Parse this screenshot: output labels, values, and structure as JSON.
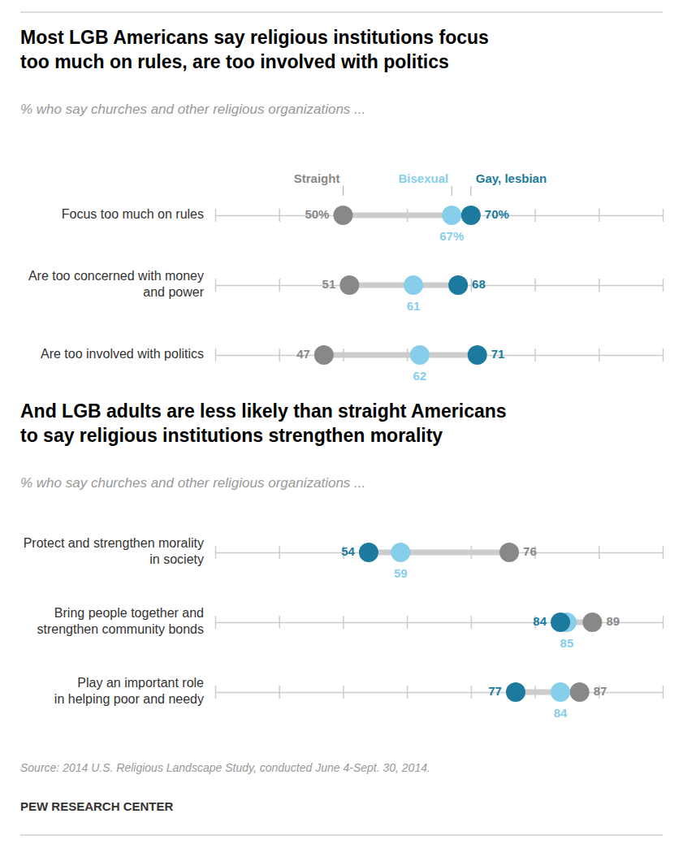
{
  "chart_data": [
    {
      "type": "dot",
      "title": "Most LGB Americans say religious institutions focus\ntoo much on rules, are too involved with politics",
      "subtitle": "% who say churches and other religious organizations ...",
      "categories": [
        "Focus too much on rules",
        "Are too concerned with money\nand power",
        "Are too involved with politics"
      ],
      "series": [
        {
          "name": "Straight",
          "color": "#888888",
          "values": [
            50,
            51,
            47
          ],
          "value_labels": [
            "50%",
            "51",
            "47"
          ]
        },
        {
          "name": "Bisexual",
          "color": "#87CEEB",
          "values": [
            67,
            61,
            62
          ],
          "value_labels": [
            "67%",
            "61",
            "62"
          ]
        },
        {
          "name": "Gay, lesbian",
          "color": "#1B7A9E",
          "values": [
            70,
            68,
            71
          ],
          "value_labels": [
            "70%",
            "68",
            "71"
          ]
        }
      ],
      "xlim": [
        30,
        100
      ],
      "xticks": [
        30,
        40,
        50,
        60,
        70,
        80,
        90,
        100
      ],
      "tick_labels": false,
      "data_labels": true,
      "legend": "top"
    },
    {
      "type": "dot",
      "title": "And LGB adults are less likely than straight Americans\nto say religious institutions strengthen morality",
      "subtitle": "% who say churches and other religious organizations ...",
      "categories": [
        "Protect and strengthen morality\nin society",
        "Bring people together and\nstrengthen community bonds",
        "Play an important role\nin helping poor and needy"
      ],
      "series": [
        {
          "color": "#888888",
          "values": [
            76,
            89,
            87
          ],
          "value_labels": [
            "76",
            "89",
            "87"
          ]
        },
        {
          "color": "#87CEEB",
          "values": [
            59,
            85,
            84
          ],
          "value_labels": [
            "59",
            "85",
            "84"
          ]
        },
        {
          "color": "#1B7A9E",
          "values": [
            54,
            84,
            77
          ],
          "value_labels": [
            "54",
            "84",
            "77"
          ]
        }
      ],
      "xlim": [
        30,
        100
      ],
      "xticks": [
        30,
        40,
        50,
        60,
        70,
        80,
        90,
        100
      ],
      "tick_labels": false,
      "data_labels": true
    }
  ],
  "source": "Source: 2014 U.S. Religious Landscape Study, conducted June 4-Sept. 30, 2014.",
  "footer": "PEW RESEARCH CENTER"
}
